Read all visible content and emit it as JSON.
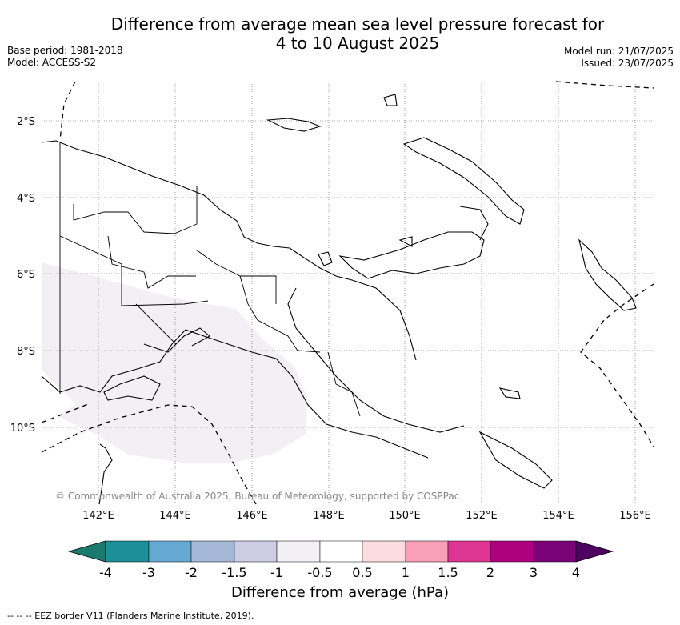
{
  "header": {
    "title_line1": "Difference from average mean sea level pressure forecast for",
    "title_line2": "4 to 10 August 2025",
    "base_period": "Base period: 1981-2018",
    "model": "Model: ACCESS-S2",
    "model_run": "Model run: 21/07/2025",
    "issued": "Issued: 23/07/2025"
  },
  "map": {
    "lat_labels": [
      "2°S",
      "4°S",
      "6°S",
      "8°S",
      "10°S"
    ],
    "lon_labels": [
      "142°E",
      "144°E",
      "146°E",
      "148°E",
      "150°E",
      "152°E",
      "154°E",
      "156°E"
    ],
    "anomaly_region_color": "#f2eff5",
    "credit": "© Commonwealth of Australia 2025, Bureau of Meteorology, supported by COSPPac"
  },
  "colorbar": {
    "label": "Difference from average (hPa)",
    "ticks": [
      "-4",
      "-3",
      "-2",
      "-1.5",
      "-1",
      "-0.5",
      "0.5",
      "1",
      "1.5",
      "2",
      "3",
      "4"
    ],
    "colors": [
      "#1a7a6e",
      "#1b9099",
      "#66a9d2",
      "#a6b8d8",
      "#cdcde5",
      "#f2eff5",
      "#ffffff",
      "#fcdcde",
      "#f9a0b8",
      "#df3592",
      "#ae017e",
      "#7a0177",
      "#4d0060"
    ]
  },
  "footer": {
    "eez_legend": "--  --  -- EEZ border V11 (Flanders Marine Institute, 2019)."
  }
}
